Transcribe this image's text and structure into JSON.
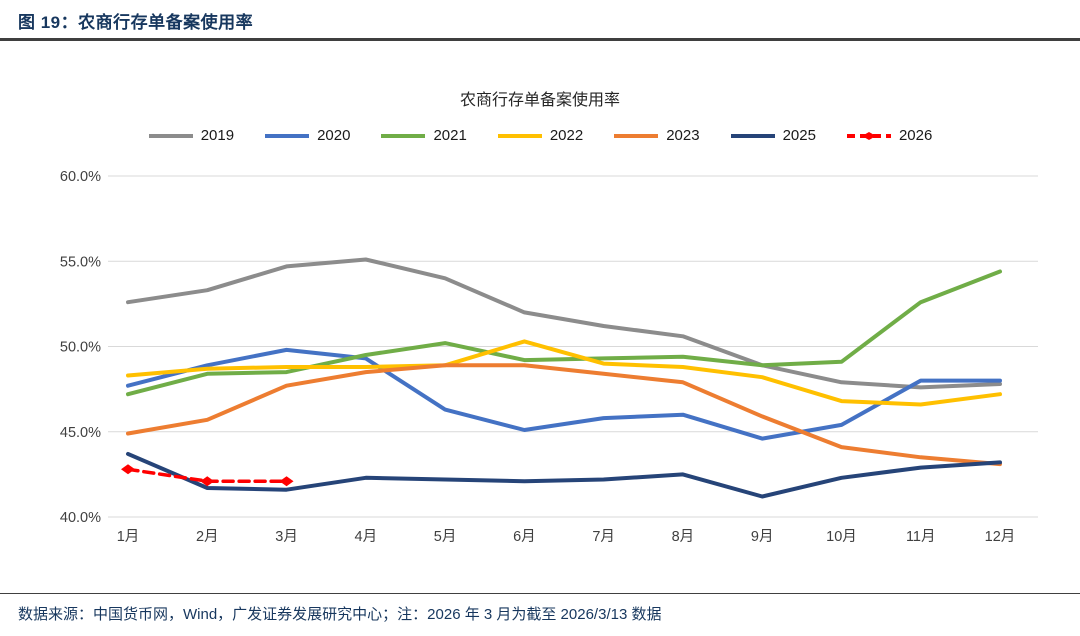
{
  "header": {
    "title": "图 19：农商行存单备案使用率"
  },
  "chart": {
    "title": "农商行存单备案使用率"
  },
  "footer": {
    "source": "数据来源：中国货币网，Wind，广发证券发展研究中心；注：2026 年 3 月为截至 2026/3/13 数据"
  },
  "chart_data": {
    "type": "line",
    "title": "农商行存单备案使用率",
    "categories": [
      "1月",
      "2月",
      "3月",
      "4月",
      "5月",
      "6月",
      "7月",
      "8月",
      "9月",
      "10月",
      "11月",
      "12月"
    ],
    "y_tick_labels": [
      "60.0%",
      "55.0%",
      "50.0%",
      "45.0%",
      "40.0%"
    ],
    "y_tick_values": [
      60,
      55,
      50,
      45,
      40
    ],
    "ylim": [
      40,
      60
    ],
    "unit": "%",
    "grid": "horizontal",
    "legend_position": "top",
    "series": [
      {
        "name": "2019",
        "color": "#8c8c8c",
        "style": "solid",
        "values": [
          52.6,
          53.3,
          54.7,
          55.1,
          54.0,
          52.0,
          51.2,
          50.6,
          48.9,
          47.9,
          47.6,
          47.8
        ]
      },
      {
        "name": "2020",
        "color": "#4472c4",
        "style": "solid",
        "values": [
          47.7,
          48.9,
          49.8,
          49.3,
          46.3,
          45.1,
          45.8,
          46.0,
          44.6,
          45.4,
          48.0,
          48.0
        ]
      },
      {
        "name": "2021",
        "color": "#70ad47",
        "style": "solid",
        "values": [
          47.2,
          48.4,
          48.5,
          49.5,
          50.2,
          49.2,
          49.3,
          49.4,
          48.9,
          49.1,
          52.6,
          54.4
        ]
      },
      {
        "name": "2022",
        "color": "#ffc000",
        "style": "solid",
        "values": [
          48.3,
          48.7,
          48.8,
          48.8,
          48.9,
          50.3,
          49.0,
          48.8,
          48.2,
          46.8,
          46.6,
          47.2
        ]
      },
      {
        "name": "2023",
        "color": "#ed7d31",
        "style": "solid",
        "values": [
          44.9,
          45.7,
          47.7,
          48.5,
          48.9,
          48.9,
          48.4,
          47.9,
          45.9,
          44.1,
          43.5,
          43.1
        ]
      },
      {
        "name": "2025",
        "color": "#264478",
        "style": "solid",
        "values": [
          43.7,
          41.7,
          41.6,
          42.3,
          42.2,
          42.1,
          42.2,
          42.5,
          41.2,
          42.3,
          42.9,
          43.2
        ]
      },
      {
        "name": "2026",
        "color": "#ff0000",
        "style": "dashed",
        "marker": "diamond",
        "values": [
          42.8,
          42.1,
          42.1
        ]
      }
    ]
  }
}
